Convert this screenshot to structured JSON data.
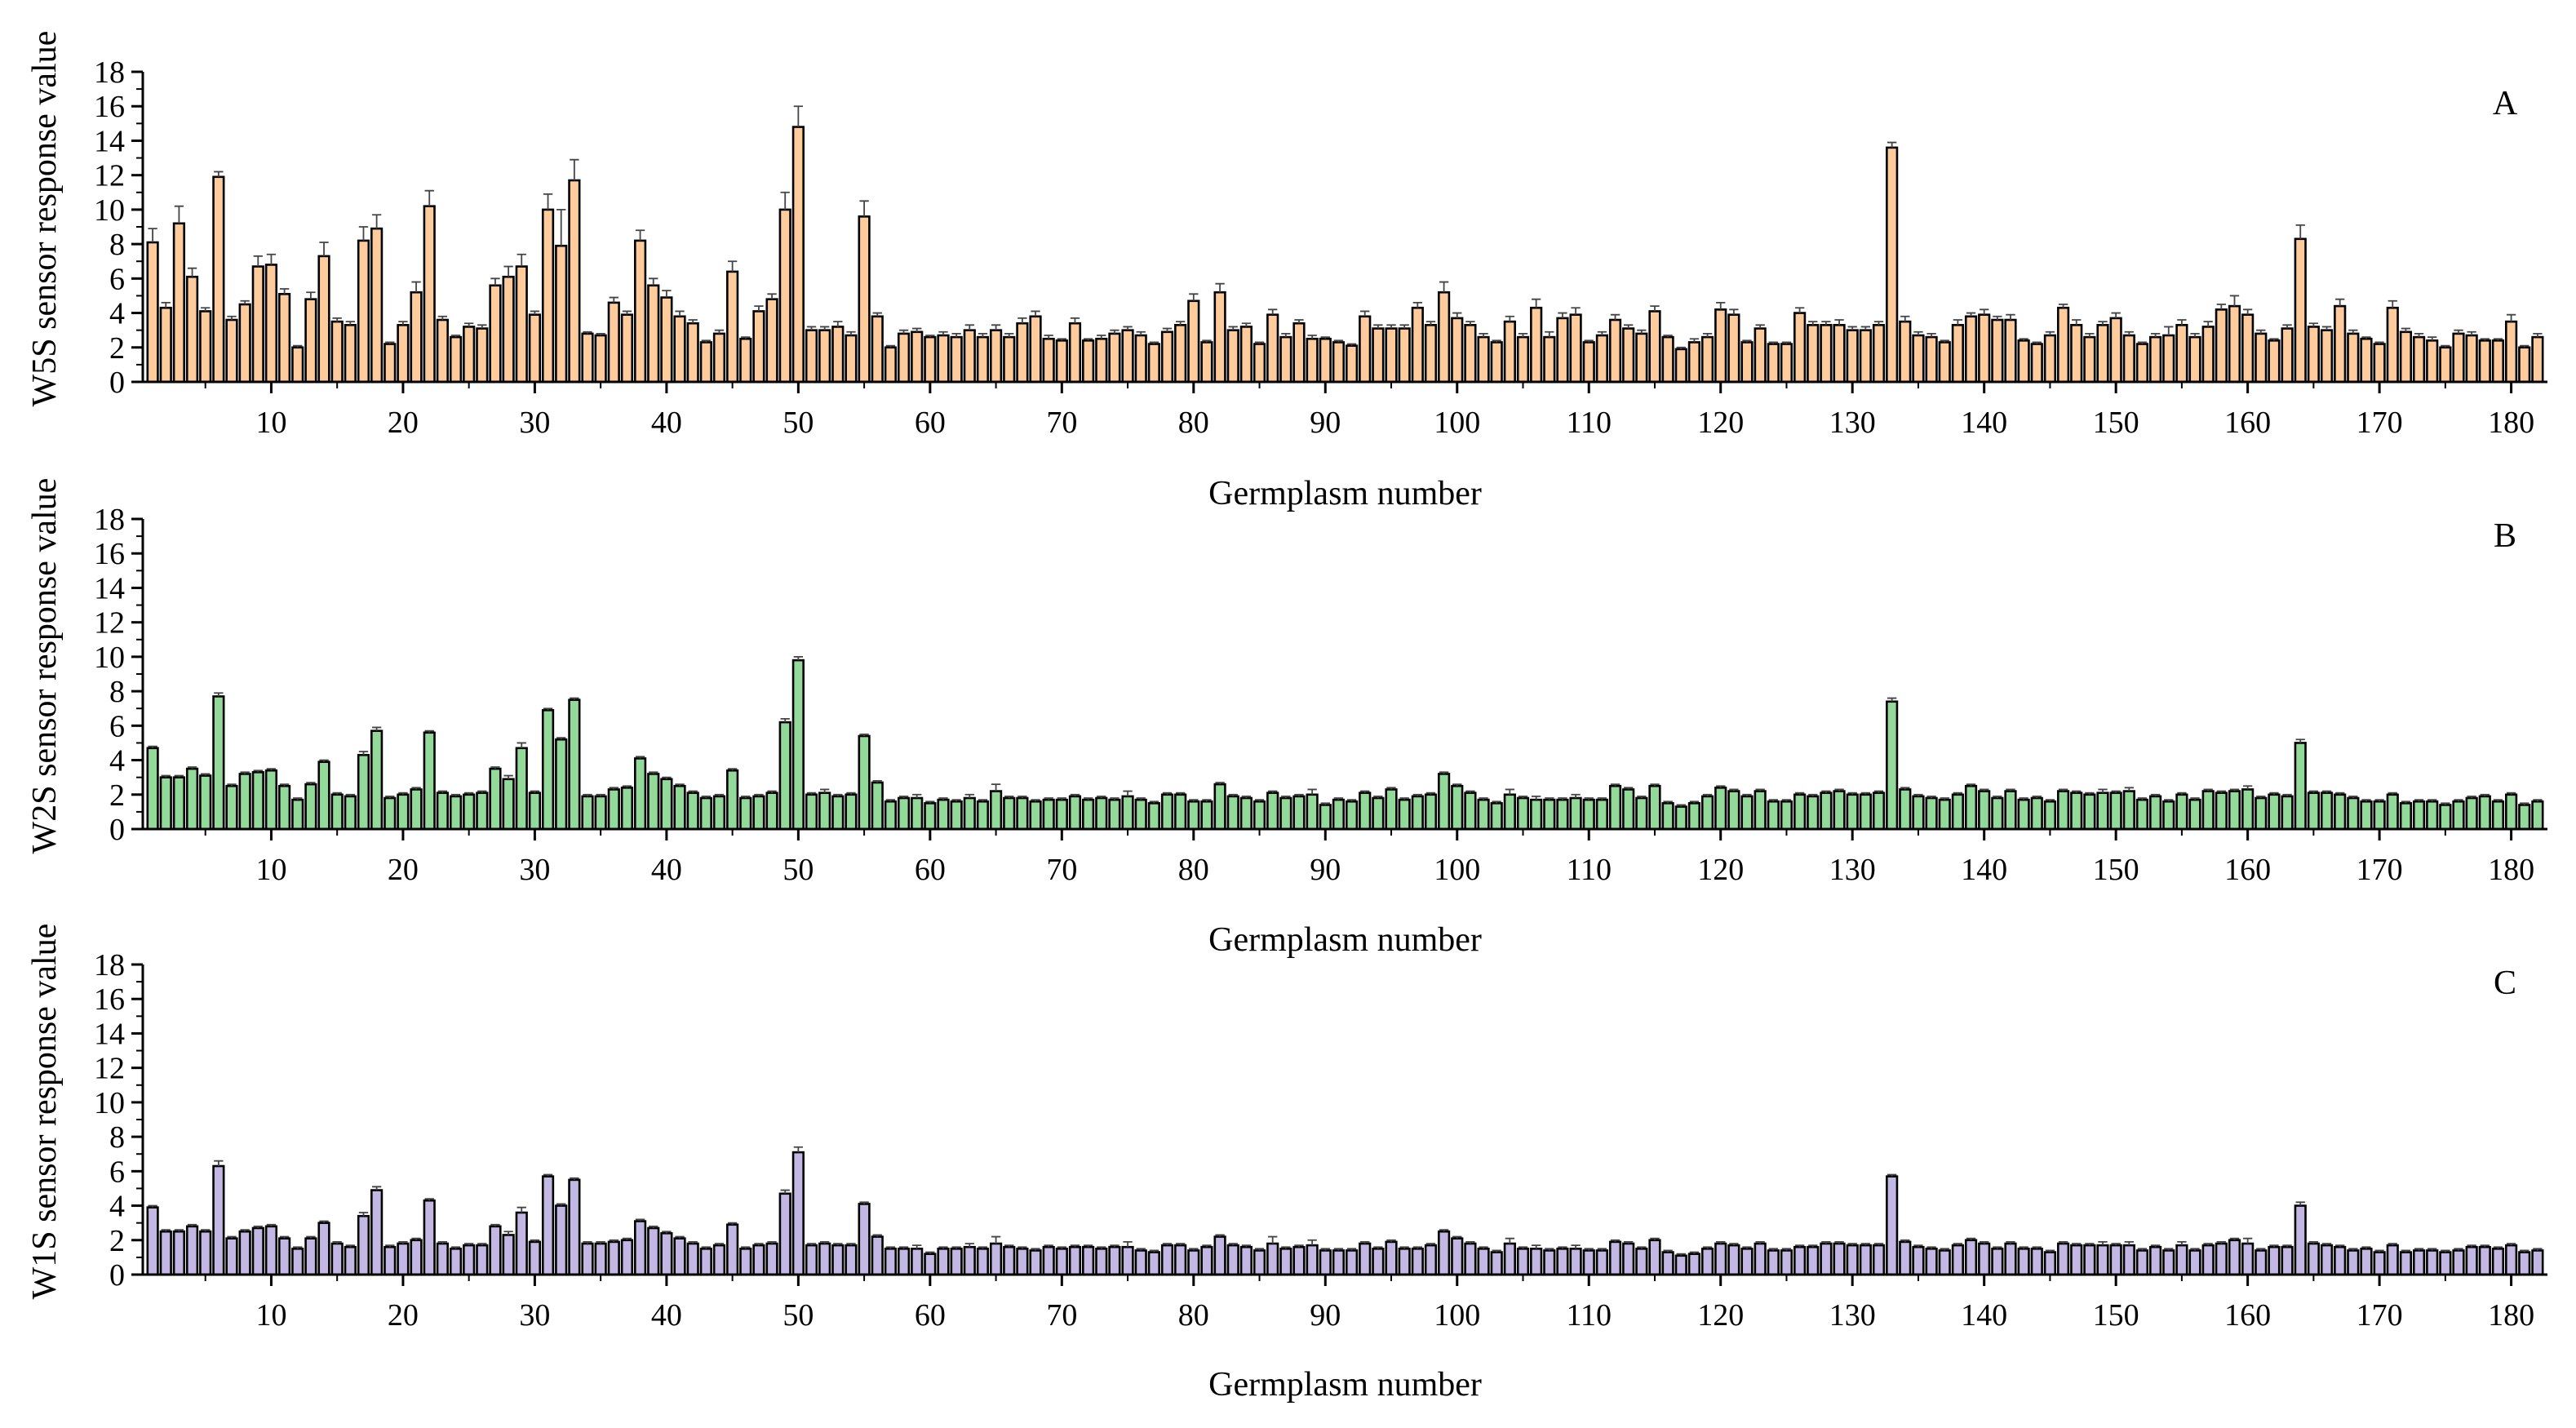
{
  "chart_data": [
    {
      "type": "bar",
      "panel_label": "A",
      "series_name": "W5S",
      "xlabel": "Germplasm number",
      "ylabel": "W5S sensor response value",
      "ylim": [
        0,
        18
      ],
      "yticks": [
        0,
        2,
        4,
        6,
        8,
        10,
        12,
        14,
        16,
        18
      ],
      "xlim": [
        1,
        182
      ],
      "xticks": [
        10,
        20,
        30,
        40,
        50,
        60,
        70,
        80,
        90,
        100,
        110,
        120,
        130,
        140,
        150,
        160,
        170,
        180
      ],
      "color": "#FDCB9C",
      "values": [
        8.1,
        4.3,
        9.2,
        6.1,
        4.1,
        11.9,
        3.6,
        4.5,
        6.7,
        6.8,
        5.1,
        2.0,
        4.8,
        7.3,
        3.5,
        3.3,
        8.2,
        8.9,
        2.2,
        3.3,
        5.2,
        10.2,
        3.6,
        2.6,
        3.2,
        3.1,
        5.6,
        6.1,
        6.7,
        3.9,
        10.0,
        7.9,
        11.7,
        2.8,
        2.7,
        4.6,
        3.9,
        8.2,
        5.6,
        4.9,
        3.8,
        3.4,
        2.3,
        2.8,
        6.4,
        2.5,
        4.1,
        4.8,
        10.0,
        14.8,
        3.0,
        3.0,
        3.2,
        2.7,
        9.6,
        3.8,
        2.0,
        2.8,
        2.9,
        2.6,
        2.7,
        2.6,
        3.0,
        2.6,
        3.0,
        2.6,
        3.4,
        3.8,
        2.5,
        2.4,
        3.4,
        2.4,
        2.5,
        2.8,
        3.0,
        2.7,
        2.2,
        2.9,
        3.3,
        4.7,
        2.3,
        5.2,
        3.0,
        3.2,
        2.2,
        3.9,
        2.6,
        3.4,
        2.5,
        2.5,
        2.3,
        2.1,
        3.8,
        3.1,
        3.1,
        3.1,
        4.3,
        3.3,
        5.2,
        3.7,
        3.3,
        2.6,
        2.3,
        3.5,
        2.6,
        4.3,
        2.6,
        3.7,
        3.9,
        2.3,
        2.7,
        3.6,
        3.1,
        2.8,
        4.1,
        2.6,
        1.9,
        2.3,
        2.6,
        4.2,
        3.9,
        2.3,
        3.1,
        2.2,
        2.2,
        4.0,
        3.3,
        3.3,
        3.3,
        3.0,
        3.0,
        3.3,
        13.6,
        3.5,
        2.7,
        2.6,
        2.3,
        3.3,
        3.8,
        3.9,
        3.6,
        3.6,
        2.4,
        2.2,
        2.7,
        4.3,
        3.3,
        2.6,
        3.3,
        3.7,
        2.7,
        2.2,
        2.6,
        2.7,
        3.3,
        2.6,
        3.2,
        4.2,
        4.4,
        3.9,
        2.8,
        2.4,
        3.1,
        8.3,
        3.2,
        3.0,
        4.4,
        2.8,
        2.5,
        2.2,
        4.3,
        2.9,
        2.6,
        2.4,
        2.0,
        2.8,
        2.7,
        2.4,
        2.4,
        3.5,
        2.0,
        2.6
      ],
      "errors": [
        0.8,
        0.3,
        1.0,
        0.5,
        0.2,
        0.3,
        0.2,
        0.2,
        0.6,
        0.6,
        0.3,
        0.1,
        0.4,
        0.8,
        0.2,
        0.2,
        0.8,
        0.8,
        0.1,
        0.2,
        0.6,
        0.9,
        0.2,
        0.1,
        0.2,
        0.2,
        0.4,
        0.6,
        0.7,
        0.2,
        0.9,
        2.1,
        1.2,
        0.1,
        0.1,
        0.3,
        0.2,
        0.6,
        0.4,
        0.4,
        0.3,
        0.2,
        0.1,
        0.2,
        0.6,
        0.1,
        0.3,
        0.3,
        1.0,
        1.2,
        0.2,
        0.2,
        0.3,
        0.2,
        0.9,
        0.2,
        0.1,
        0.2,
        0.2,
        0.1,
        0.2,
        0.2,
        0.3,
        0.2,
        0.3,
        0.2,
        0.3,
        0.3,
        0.2,
        0.1,
        0.3,
        0.1,
        0.2,
        0.2,
        0.2,
        0.2,
        0.1,
        0.2,
        0.2,
        0.4,
        0.1,
        0.5,
        0.2,
        0.2,
        0.1,
        0.3,
        0.2,
        0.2,
        0.2,
        0.1,
        0.1,
        0.1,
        0.3,
        0.2,
        0.2,
        0.2,
        0.3,
        0.2,
        0.6,
        0.3,
        0.2,
        0.2,
        0.1,
        0.3,
        0.2,
        0.5,
        0.3,
        0.3,
        0.4,
        0.1,
        0.2,
        0.3,
        0.2,
        0.2,
        0.3,
        0.1,
        0.1,
        0.2,
        0.2,
        0.4,
        0.3,
        0.1,
        0.2,
        0.1,
        0.1,
        0.3,
        0.2,
        0.2,
        0.3,
        0.2,
        0.2,
        0.2,
        0.3,
        0.3,
        0.2,
        0.2,
        0.1,
        0.3,
        0.2,
        0.3,
        0.2,
        0.3,
        0.1,
        0.1,
        0.2,
        0.2,
        0.3,
        0.2,
        0.2,
        0.3,
        0.2,
        0.1,
        0.2,
        0.5,
        0.3,
        0.2,
        0.3,
        0.3,
        0.6,
        0.3,
        0.2,
        0.1,
        0.2,
        0.8,
        0.2,
        0.2,
        0.4,
        0.2,
        0.1,
        0.1,
        0.4,
        0.2,
        0.2,
        0.2,
        0.1,
        0.2,
        0.2,
        0.1,
        0.1,
        0.4,
        0.1,
        0.2
      ]
    },
    {
      "type": "bar",
      "panel_label": "B",
      "series_name": "W2S",
      "xlabel": "Germplasm number",
      "ylabel": "W2S sensor response value",
      "ylim": [
        0,
        18
      ],
      "yticks": [
        0,
        2,
        4,
        6,
        8,
        10,
        12,
        14,
        16,
        18
      ],
      "xlim": [
        1,
        182
      ],
      "xticks": [
        10,
        20,
        30,
        40,
        50,
        60,
        70,
        80,
        90,
        100,
        110,
        120,
        130,
        140,
        150,
        160,
        170,
        180
      ],
      "color": "#93D99A",
      "values": [
        4.7,
        3.0,
        3.0,
        3.5,
        3.1,
        7.7,
        2.5,
        3.2,
        3.3,
        3.4,
        2.5,
        1.7,
        2.6,
        3.9,
        2.0,
        1.9,
        4.3,
        5.7,
        1.8,
        2.0,
        2.3,
        5.6,
        2.1,
        1.9,
        2.0,
        2.1,
        3.5,
        2.9,
        4.7,
        2.1,
        6.9,
        5.2,
        7.5,
        1.9,
        1.9,
        2.3,
        2.4,
        4.1,
        3.2,
        2.9,
        2.5,
        2.1,
        1.8,
        1.9,
        3.4,
        1.8,
        1.9,
        2.1,
        6.2,
        9.8,
        2.0,
        2.1,
        1.9,
        2.0,
        5.4,
        2.7,
        1.6,
        1.8,
        1.8,
        1.5,
        1.7,
        1.6,
        1.8,
        1.6,
        2.2,
        1.8,
        1.8,
        1.6,
        1.7,
        1.7,
        1.9,
        1.7,
        1.8,
        1.7,
        1.9,
        1.7,
        1.5,
        2.0,
        2.0,
        1.6,
        1.6,
        2.6,
        1.9,
        1.8,
        1.6,
        2.1,
        1.8,
        1.9,
        2.0,
        1.4,
        1.7,
        1.6,
        2.1,
        1.8,
        2.3,
        1.7,
        1.9,
        2.0,
        3.2,
        2.5,
        2.1,
        1.7,
        1.5,
        2.0,
        1.8,
        1.7,
        1.7,
        1.7,
        1.8,
        1.7,
        1.7,
        2.5,
        2.3,
        1.8,
        2.5,
        1.5,
        1.3,
        1.5,
        1.9,
        2.4,
        2.2,
        1.9,
        2.2,
        1.6,
        1.6,
        2.0,
        1.9,
        2.1,
        2.2,
        2.0,
        2.0,
        2.1,
        7.4,
        2.3,
        1.9,
        1.8,
        1.7,
        2.0,
        2.5,
        2.2,
        1.8,
        2.2,
        1.7,
        1.8,
        1.6,
        2.2,
        2.1,
        2.0,
        2.1,
        2.1,
        2.2,
        1.7,
        1.9,
        1.6,
        2.0,
        1.7,
        2.2,
        2.1,
        2.2,
        2.3,
        1.8,
        2.0,
        1.9,
        5.0,
        2.1,
        2.1,
        2.0,
        1.8,
        1.6,
        1.6,
        2.0,
        1.5,
        1.6,
        1.6,
        1.4,
        1.6,
        1.8,
        1.9,
        1.6,
        2.0,
        1.4,
        1.6
      ],
      "errors": [
        0.1,
        0.1,
        0.1,
        0.1,
        0.1,
        0.2,
        0.1,
        0.1,
        0.1,
        0.1,
        0.1,
        0.1,
        0.1,
        0.1,
        0.1,
        0.1,
        0.2,
        0.2,
        0.1,
        0.1,
        0.1,
        0.1,
        0.1,
        0.1,
        0.1,
        0.1,
        0.1,
        0.2,
        0.3,
        0.1,
        0.1,
        0.1,
        0.1,
        0.1,
        0.1,
        0.1,
        0.1,
        0.1,
        0.1,
        0.1,
        0.1,
        0.1,
        0.1,
        0.1,
        0.1,
        0.1,
        0.1,
        0.1,
        0.2,
        0.2,
        0.1,
        0.2,
        0.1,
        0.1,
        0.1,
        0.1,
        0.1,
        0.1,
        0.2,
        0.1,
        0.1,
        0.1,
        0.2,
        0.1,
        0.4,
        0.1,
        0.1,
        0.1,
        0.1,
        0.1,
        0.1,
        0.1,
        0.1,
        0.1,
        0.3,
        0.1,
        0.1,
        0.1,
        0.1,
        0.1,
        0.1,
        0.1,
        0.1,
        0.1,
        0.1,
        0.1,
        0.1,
        0.1,
        0.3,
        0.1,
        0.1,
        0.1,
        0.1,
        0.1,
        0.1,
        0.1,
        0.1,
        0.1,
        0.1,
        0.1,
        0.1,
        0.1,
        0.1,
        0.3,
        0.1,
        0.2,
        0.1,
        0.1,
        0.2,
        0.1,
        0.1,
        0.1,
        0.1,
        0.1,
        0.1,
        0.1,
        0.1,
        0.1,
        0.1,
        0.1,
        0.1,
        0.1,
        0.1,
        0.1,
        0.1,
        0.1,
        0.1,
        0.1,
        0.1,
        0.1,
        0.1,
        0.1,
        0.2,
        0.1,
        0.1,
        0.1,
        0.1,
        0.1,
        0.1,
        0.1,
        0.1,
        0.1,
        0.1,
        0.1,
        0.1,
        0.1,
        0.1,
        0.1,
        0.2,
        0.1,
        0.2,
        0.1,
        0.1,
        0.1,
        0.1,
        0.1,
        0.1,
        0.1,
        0.1,
        0.2,
        0.1,
        0.1,
        0.1,
        0.2,
        0.1,
        0.1,
        0.1,
        0.1,
        0.1,
        0.1,
        0.1,
        0.1,
        0.1,
        0.1,
        0.1,
        0.1,
        0.1,
        0.1,
        0.1,
        0.1,
        0.1,
        0.1
      ]
    },
    {
      "type": "bar",
      "panel_label": "C",
      "series_name": "W1S",
      "xlabel": "Germplasm number",
      "ylabel": "W1S sensor response value",
      "ylim": [
        0,
        18
      ],
      "yticks": [
        0,
        2,
        4,
        6,
        8,
        10,
        12,
        14,
        16,
        18
      ],
      "xlim": [
        1,
        182
      ],
      "xticks": [
        10,
        20,
        30,
        40,
        50,
        60,
        70,
        80,
        90,
        100,
        110,
        120,
        130,
        140,
        150,
        160,
        170,
        180
      ],
      "color": "#C3B7E3",
      "values": [
        3.9,
        2.5,
        2.5,
        2.8,
        2.5,
        6.3,
        2.1,
        2.5,
        2.7,
        2.8,
        2.1,
        1.5,
        2.1,
        3.0,
        1.8,
        1.6,
        3.4,
        4.9,
        1.6,
        1.8,
        2.0,
        4.3,
        1.8,
        1.5,
        1.7,
        1.7,
        2.8,
        2.3,
        3.6,
        1.9,
        5.7,
        4.0,
        5.5,
        1.8,
        1.8,
        1.9,
        2.0,
        3.1,
        2.7,
        2.4,
        2.1,
        1.8,
        1.5,
        1.7,
        2.9,
        1.5,
        1.7,
        1.8,
        4.7,
        7.1,
        1.7,
        1.8,
        1.7,
        1.7,
        4.1,
        2.2,
        1.5,
        1.5,
        1.5,
        1.2,
        1.5,
        1.5,
        1.6,
        1.5,
        1.8,
        1.6,
        1.5,
        1.4,
        1.6,
        1.5,
        1.6,
        1.6,
        1.5,
        1.6,
        1.6,
        1.4,
        1.3,
        1.7,
        1.7,
        1.4,
        1.6,
        2.2,
        1.7,
        1.6,
        1.4,
        1.8,
        1.5,
        1.6,
        1.7,
        1.4,
        1.4,
        1.4,
        1.8,
        1.5,
        1.9,
        1.5,
        1.5,
        1.7,
        2.5,
        2.1,
        1.8,
        1.5,
        1.3,
        1.8,
        1.5,
        1.5,
        1.4,
        1.5,
        1.5,
        1.4,
        1.4,
        1.9,
        1.8,
        1.5,
        2.0,
        1.3,
        1.1,
        1.2,
        1.5,
        1.8,
        1.7,
        1.5,
        1.8,
        1.4,
        1.4,
        1.6,
        1.6,
        1.8,
        1.8,
        1.7,
        1.7,
        1.7,
        5.7,
        1.9,
        1.6,
        1.5,
        1.4,
        1.7,
        2.0,
        1.8,
        1.5,
        1.8,
        1.5,
        1.5,
        1.3,
        1.8,
        1.7,
        1.7,
        1.7,
        1.7,
        1.7,
        1.4,
        1.6,
        1.4,
        1.7,
        1.4,
        1.7,
        1.8,
        2.0,
        1.8,
        1.4,
        1.6,
        1.6,
        4.0,
        1.8,
        1.7,
        1.6,
        1.4,
        1.5,
        1.3,
        1.7,
        1.3,
        1.4,
        1.4,
        1.3,
        1.4,
        1.6,
        1.6,
        1.5,
        1.7,
        1.3,
        1.4
      ],
      "errors": [
        0.1,
        0.1,
        0.1,
        0.1,
        0.1,
        0.3,
        0.1,
        0.1,
        0.1,
        0.1,
        0.1,
        0.1,
        0.1,
        0.1,
        0.1,
        0.1,
        0.2,
        0.2,
        0.1,
        0.1,
        0.1,
        0.1,
        0.1,
        0.1,
        0.1,
        0.1,
        0.1,
        0.2,
        0.3,
        0.1,
        0.1,
        0.1,
        0.1,
        0.1,
        0.1,
        0.1,
        0.1,
        0.1,
        0.1,
        0.1,
        0.1,
        0.1,
        0.1,
        0.1,
        0.1,
        0.1,
        0.1,
        0.1,
        0.2,
        0.3,
        0.1,
        0.1,
        0.1,
        0.1,
        0.1,
        0.1,
        0.1,
        0.1,
        0.2,
        0.1,
        0.1,
        0.1,
        0.2,
        0.1,
        0.4,
        0.1,
        0.1,
        0.1,
        0.1,
        0.1,
        0.1,
        0.1,
        0.1,
        0.1,
        0.3,
        0.1,
        0.1,
        0.1,
        0.1,
        0.1,
        0.1,
        0.1,
        0.1,
        0.1,
        0.1,
        0.4,
        0.1,
        0.1,
        0.3,
        0.1,
        0.1,
        0.1,
        0.1,
        0.1,
        0.1,
        0.1,
        0.1,
        0.1,
        0.1,
        0.1,
        0.1,
        0.1,
        0.1,
        0.3,
        0.1,
        0.2,
        0.1,
        0.1,
        0.2,
        0.1,
        0.1,
        0.1,
        0.1,
        0.1,
        0.1,
        0.1,
        0.1,
        0.1,
        0.1,
        0.1,
        0.1,
        0.1,
        0.1,
        0.1,
        0.1,
        0.1,
        0.1,
        0.1,
        0.1,
        0.1,
        0.1,
        0.1,
        0.1,
        0.1,
        0.1,
        0.1,
        0.1,
        0.1,
        0.1,
        0.1,
        0.1,
        0.1,
        0.1,
        0.1,
        0.1,
        0.1,
        0.1,
        0.1,
        0.2,
        0.1,
        0.2,
        0.1,
        0.1,
        0.1,
        0.2,
        0.1,
        0.1,
        0.1,
        0.1,
        0.3,
        0.1,
        0.1,
        0.1,
        0.2,
        0.1,
        0.1,
        0.1,
        0.1,
        0.1,
        0.1,
        0.1,
        0.1,
        0.1,
        0.1,
        0.1,
        0.1,
        0.1,
        0.1,
        0.1,
        0.1,
        0.1,
        0.1
      ]
    }
  ]
}
